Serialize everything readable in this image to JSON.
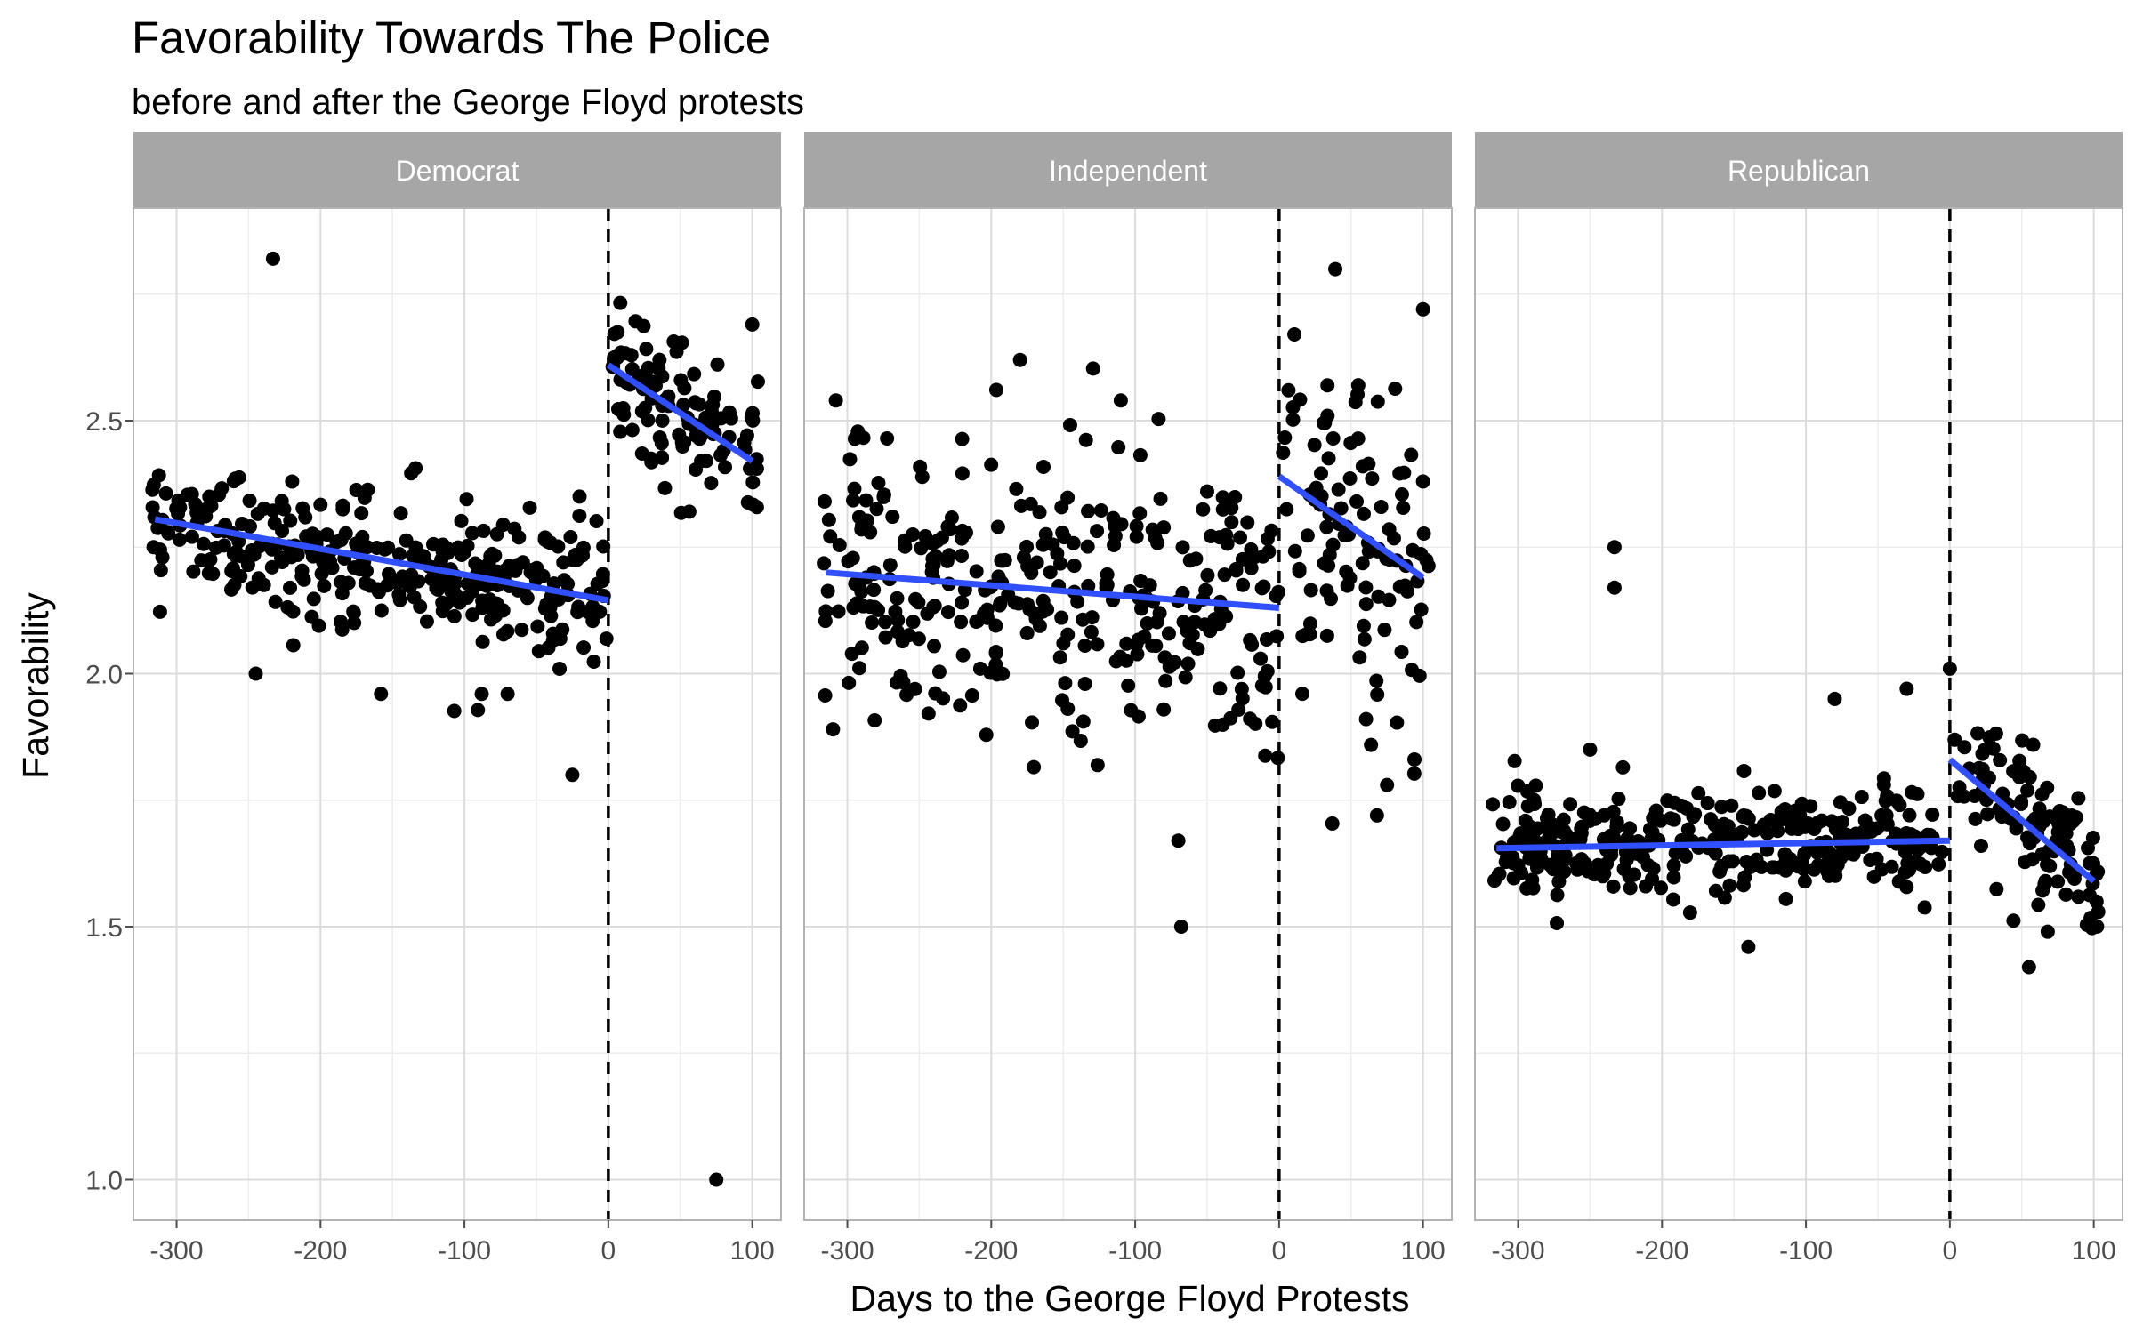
{
  "chart_data": {
    "type": "scatter",
    "title": "Favorability Towards The Police",
    "subtitle": "before and after the George Floyd protests",
    "xlabel": "Days to the George Floyd Protests",
    "ylabel": "Favorability",
    "xlim": [
      -330,
      120
    ],
    "ylim": [
      0.92,
      2.92
    ],
    "x_ticks": [
      -300,
      -200,
      -100,
      0,
      100
    ],
    "x_tick_labels": [
      "-300",
      "-200",
      "-100",
      "0",
      "100"
    ],
    "y_ticks": [
      1.0,
      1.5,
      2.0,
      2.5
    ],
    "y_tick_labels": [
      "1.0",
      "1.5",
      "2.0",
      "2.5"
    ],
    "grid": true,
    "reference_line": {
      "x": 0,
      "style": "dashed",
      "color": "#000000"
    },
    "point_color": "#000000",
    "trend_color": "#3050ff",
    "strip_color": "#a6a6a6",
    "panels": [
      {
        "name": "Democrat",
        "pre_trend": [
          [
            -315,
            2.305
          ],
          [
            0,
            2.145
          ]
        ],
        "post_trend": [
          [
            0,
            2.61
          ],
          [
            100,
            2.42
          ]
        ],
        "pre_band": [
          -330,
          0,
          2.13,
          2.33,
          0.065
        ],
        "post_band": [
          0,
          100,
          2.4,
          2.62,
          0.075
        ],
        "outliers": [
          [
            -233,
            2.82
          ],
          [
            -25,
            1.8
          ],
          [
            75,
            1.0
          ],
          [
            -158,
            1.96
          ],
          [
            -88,
            1.96
          ],
          [
            -70,
            1.96
          ],
          [
            -245,
            2.0
          ],
          [
            -20,
            2.35
          ],
          [
            100,
            2.69
          ]
        ]
      },
      {
        "name": "Independent",
        "pre_trend": [
          [
            -315,
            2.2
          ],
          [
            0,
            2.13
          ]
        ],
        "post_trend": [
          [
            0,
            2.39
          ],
          [
            100,
            2.19
          ]
        ],
        "pre_band": [
          -330,
          0,
          2.12,
          2.21,
          0.14
        ],
        "post_band": [
          0,
          100,
          2.18,
          2.4,
          0.16
        ],
        "outliers": [
          [
            -308,
            2.54
          ],
          [
            -180,
            2.62
          ],
          [
            -110,
            2.54
          ],
          [
            -70,
            1.67
          ],
          [
            -68,
            1.5
          ],
          [
            100,
            2.72
          ],
          [
            68,
            1.72
          ],
          [
            75,
            1.78
          ],
          [
            55,
            2.57
          ],
          [
            -310,
            1.89
          ],
          [
            -50,
            2.36
          ]
        ]
      },
      {
        "name": "Republican",
        "pre_trend": [
          [
            -315,
            1.655
          ],
          [
            0,
            1.67
          ]
        ],
        "post_trend": [
          [
            0,
            1.83
          ],
          [
            100,
            1.59
          ]
        ],
        "pre_band": [
          -330,
          0,
          1.655,
          1.67,
          0.05
        ],
        "post_band": [
          0,
          100,
          1.59,
          1.85,
          0.07
        ],
        "outliers": [
          [
            -233,
            2.25
          ],
          [
            -233,
            2.17
          ],
          [
            -80,
            1.95
          ],
          [
            -140,
            1.46
          ],
          [
            55,
            1.42
          ],
          [
            68,
            1.49
          ],
          [
            -30,
            1.97
          ],
          [
            0,
            2.01
          ],
          [
            -250,
            1.85
          ]
        ]
      }
    ]
  }
}
